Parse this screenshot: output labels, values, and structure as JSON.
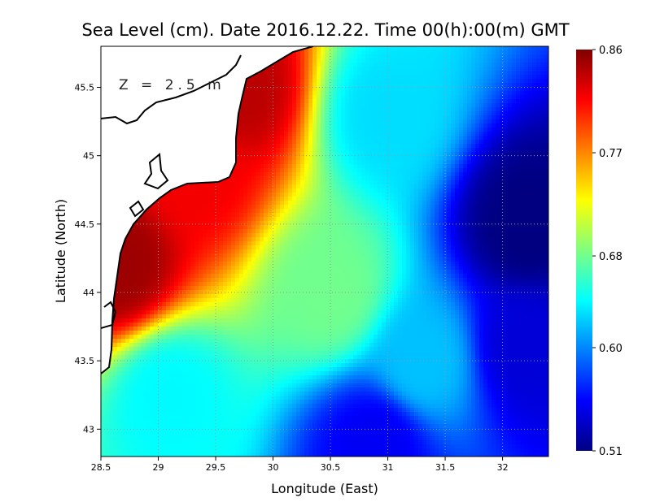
{
  "chart_data": {
    "type": "heatmap",
    "title": "Sea Level (cm). Date 2016.12.22. Time 00(h):00(m) GMT",
    "annotation": "Z = 2.5 m",
    "xlabel": "Longitude (East)",
    "ylabel": "Latitude (North)",
    "xlim": [
      28.5,
      32.4
    ],
    "ylim": [
      42.8,
      45.8
    ],
    "x_ticks": [
      "28.5",
      "29",
      "29.5",
      "30",
      "30.5",
      "31",
      "31.5",
      "32"
    ],
    "y_ticks": [
      "43",
      "43.5",
      "44",
      "44.5",
      "45",
      "45.5"
    ],
    "grid": true,
    "colorbar": {
      "position": "right",
      "min": 0.51,
      "max": 0.86,
      "tick_labels": [
        "0.86",
        "0.77",
        "0.68",
        "0.60",
        "0.51"
      ],
      "colormap": "jet"
    },
    "field_samples": [
      {
        "lon": 28.65,
        "lat": 44.2,
        "value": 0.85
      },
      {
        "lon": 29.3,
        "lat": 44.9,
        "value": 0.82
      },
      {
        "lon": 29.7,
        "lat": 45.5,
        "value": 0.84
      },
      {
        "lon": 29.1,
        "lat": 43.25,
        "value": 0.64
      },
      {
        "lon": 30.5,
        "lat": 44.0,
        "value": 0.68
      },
      {
        "lon": 31.0,
        "lat": 45.3,
        "value": 0.63
      },
      {
        "lon": 32.2,
        "lat": 44.5,
        "value": 0.51
      },
      {
        "lon": 32.2,
        "lat": 43.6,
        "value": 0.54
      },
      {
        "lon": 31.3,
        "lat": 43.5,
        "value": 0.62
      },
      {
        "lon": 30.9,
        "lat": 42.9,
        "value": 0.55
      }
    ]
  }
}
